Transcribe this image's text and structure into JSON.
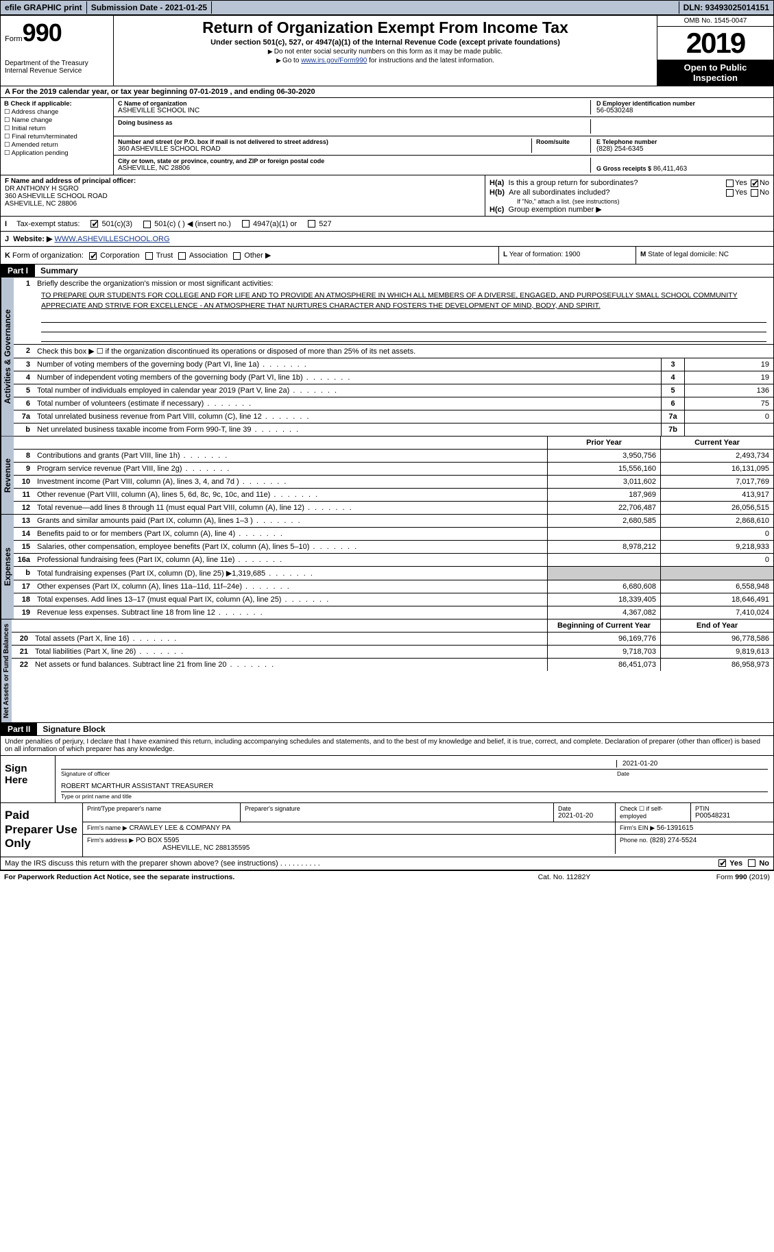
{
  "topbar": {
    "efile": "efile GRAPHIC print",
    "submission": "Submission Date - 2021-01-25",
    "dln": "DLN: 93493025014151"
  },
  "header": {
    "form_word": "Form",
    "form_num": "990",
    "dept1": "Department of the Treasury",
    "dept2": "Internal Revenue Service",
    "title": "Return of Organization Exempt From Income Tax",
    "subtitle": "Under section 501(c), 527, or 4947(a)(1) of the Internal Revenue Code (except private foundations)",
    "note1": "Do not enter social security numbers on this form as it may be made public.",
    "note2_pre": "Go to ",
    "note2_link": "www.irs.gov/Form990",
    "note2_post": " for instructions and the latest information.",
    "omb": "OMB No. 1545-0047",
    "year": "2019",
    "open1": "Open to Public",
    "open2": "Inspection"
  },
  "period": "For the 2019 calendar year, or tax year beginning 07-01-2019    , and ending 06-30-2020",
  "blockB": {
    "label": "B Check if applicable:",
    "opts": [
      "Address change",
      "Name change",
      "Initial return",
      "Final return/terminated",
      "Amended return",
      "Application pending"
    ]
  },
  "blockC": {
    "name_lab": "C Name of organization",
    "name": "ASHEVILLE SCHOOL INC",
    "dba_lab": "Doing business as",
    "street_lab": "Number and street (or P.O. box if mail is not delivered to street address)",
    "room_lab": "Room/suite",
    "street": "360 ASHEVILLE SCHOOL ROAD",
    "city_lab": "City or town, state or province, country, and ZIP or foreign postal code",
    "city": "ASHEVILLE, NC  28806"
  },
  "blockD": {
    "ein_lab": "D Employer identification number",
    "ein": "56-0530248",
    "tel_lab": "E Telephone number",
    "tel": "(828) 254-6345",
    "gross_lab": "G Gross receipts $",
    "gross": "86,411,463"
  },
  "blockF": {
    "lab": "F Name and address of principal officer:",
    "l1": "DR ANTHONY H SGRO",
    "l2": "360 ASHEVILLE SCHOOL ROAD",
    "l3": "ASHEVILLE, NC  28806"
  },
  "blockH": {
    "ha": "Is this a group return for subordinates?",
    "hb": "Are all subordinates included?",
    "hnote": "If \"No,\" attach a list. (see instructions)",
    "hc": "Group exemption number ▶",
    "ha_lab": "H(a)",
    "hb_lab": "H(b)",
    "hc_lab": "H(c)",
    "yes": "Yes",
    "no": "No"
  },
  "rowI": {
    "lab": "I",
    "txt": "Tax-exempt status:",
    "o1": "501(c)(3)",
    "o2": "501(c) (  ) ◀ (insert no.)",
    "o3": "4947(a)(1) or",
    "o4": "527"
  },
  "rowJ": {
    "lab": "J",
    "txt": "Website: ▶",
    "url": "WWW.ASHEVILLESCHOOL.ORG"
  },
  "rowK": {
    "lab": "K",
    "txt": "Form of organization:",
    "o1": "Corporation",
    "o2": "Trust",
    "o3": "Association",
    "o4": "Other ▶"
  },
  "rowL": {
    "lab": "L",
    "txt": "Year of formation: 1900"
  },
  "rowM": {
    "lab": "M",
    "txt": "State of legal domicile: NC"
  },
  "part1": {
    "hdr": "Part I",
    "title": "Summary",
    "line1_lab": "1",
    "line1_txt": "Briefly describe the organization's mission or most significant activities:",
    "mission": "TO PREPARE OUR STUDENTS FOR COLLEGE AND FOR LIFE AND TO PROVIDE AN ATMOSPHERE IN WHICH ALL MEMBERS OF A DIVERSE, ENGAGED, AND PURPOSEFULLY SMALL SCHOOL COMMUNITY APPRECIATE AND STRIVE FOR EXCELLENCE - AN ATMOSPHERE THAT NURTURES CHARACTER AND FOSTERS THE DEVELOPMENT OF MIND, BODY, AND SPIRIT.",
    "line2": "Check this box ▶ ☐  if the organization discontinued its operations or disposed of more than 25% of its net assets.",
    "tabs": {
      "ag": "Activities & Governance",
      "rev": "Revenue",
      "exp": "Expenses",
      "na": "Net Assets or Fund Balances"
    },
    "govRows": [
      {
        "n": "3",
        "d": "Number of voting members of the governing body (Part VI, line 1a)",
        "b": "3",
        "v": "19"
      },
      {
        "n": "4",
        "d": "Number of independent voting members of the governing body (Part VI, line 1b)",
        "b": "4",
        "v": "19"
      },
      {
        "n": "5",
        "d": "Total number of individuals employed in calendar year 2019 (Part V, line 2a)",
        "b": "5",
        "v": "136"
      },
      {
        "n": "6",
        "d": "Total number of volunteers (estimate if necessary)",
        "b": "6",
        "v": "75"
      },
      {
        "n": "7a",
        "d": "Total unrelated business revenue from Part VIII, column (C), line 12",
        "b": "7a",
        "v": "0"
      },
      {
        "n": "b",
        "d": "Net unrelated business taxable income from Form 990-T, line 39",
        "b": "7b",
        "v": ""
      }
    ],
    "colHdr1": "Prior Year",
    "colHdr2": "Current Year",
    "revRows": [
      {
        "n": "8",
        "d": "Contributions and grants (Part VIII, line 1h)",
        "p": "3,950,756",
        "c": "2,493,734"
      },
      {
        "n": "9",
        "d": "Program service revenue (Part VIII, line 2g)",
        "p": "15,556,160",
        "c": "16,131,095"
      },
      {
        "n": "10",
        "d": "Investment income (Part VIII, column (A), lines 3, 4, and 7d )",
        "p": "3,011,602",
        "c": "7,017,769"
      },
      {
        "n": "11",
        "d": "Other revenue (Part VIII, column (A), lines 5, 6d, 8c, 9c, 10c, and 11e)",
        "p": "187,969",
        "c": "413,917"
      },
      {
        "n": "12",
        "d": "Total revenue—add lines 8 through 11 (must equal Part VIII, column (A), line 12)",
        "p": "22,706,487",
        "c": "26,056,515"
      }
    ],
    "expRows": [
      {
        "n": "13",
        "d": "Grants and similar amounts paid (Part IX, column (A), lines 1–3 )",
        "p": "2,680,585",
        "c": "2,868,610"
      },
      {
        "n": "14",
        "d": "Benefits paid to or for members (Part IX, column (A), line 4)",
        "p": "",
        "c": "0"
      },
      {
        "n": "15",
        "d": "Salaries, other compensation, employee benefits (Part IX, column (A), lines 5–10)",
        "p": "8,978,212",
        "c": "9,218,933"
      },
      {
        "n": "16a",
        "d": "Professional fundraising fees (Part IX, column (A), line 11e)",
        "p": "",
        "c": "0"
      },
      {
        "n": "b",
        "d": "Total fundraising expenses (Part IX, column (D), line 25) ▶1,319,685",
        "p": "SHADE",
        "c": "SHADE"
      },
      {
        "n": "17",
        "d": "Other expenses (Part IX, column (A), lines 11a–11d, 11f–24e)",
        "p": "6,680,608",
        "c": "6,558,948"
      },
      {
        "n": "18",
        "d": "Total expenses. Add lines 13–17 (must equal Part IX, column (A), line 25)",
        "p": "18,339,405",
        "c": "18,646,491"
      },
      {
        "n": "19",
        "d": "Revenue less expenses. Subtract line 18 from line 12",
        "p": "4,367,082",
        "c": "7,410,024"
      }
    ],
    "naHdr1": "Beginning of Current Year",
    "naHdr2": "End of Year",
    "naRows": [
      {
        "n": "20",
        "d": "Total assets (Part X, line 16)",
        "p": "96,169,776",
        "c": "96,778,586"
      },
      {
        "n": "21",
        "d": "Total liabilities (Part X, line 26)",
        "p": "9,718,703",
        "c": "9,819,613"
      },
      {
        "n": "22",
        "d": "Net assets or fund balances. Subtract line 21 from line 20",
        "p": "86,451,073",
        "c": "86,958,973"
      }
    ]
  },
  "part2": {
    "hdr": "Part II",
    "title": "Signature Block",
    "decl": "Under penalties of perjury, I declare that I have examined this return, including accompanying schedules and statements, and to the best of my knowledge and belief, it is true, correct, and complete. Declaration of preparer (other than officer) is based on all information of which preparer has any knowledge.",
    "sign_here": "Sign Here",
    "sig_date": "2021-01-20",
    "sig_lab1": "Signature of officer",
    "sig_lab2": "Date",
    "officer": "ROBERT MCARTHUR  ASSISTANT TREASURER",
    "officer_lab": "Type or print name and title",
    "paid": "Paid Preparer Use Only",
    "prep_name_lab": "Print/Type preparer's name",
    "prep_sig_lab": "Preparer's signature",
    "prep_date_lab": "Date",
    "prep_date": "2021-01-20",
    "prep_check": "Check ☐ if self-employed",
    "ptin_lab": "PTIN",
    "ptin": "P00548231",
    "firm_name_lab": "Firm's name    ▶",
    "firm_name": "CRAWLEY LEE & COMPANY PA",
    "firm_ein_lab": "Firm's EIN ▶",
    "firm_ein": "56-1391615",
    "firm_addr_lab": "Firm's address ▶",
    "firm_addr1": "PO BOX 5595",
    "firm_addr2": "ASHEVILLE, NC  288135595",
    "firm_phone_lab": "Phone no.",
    "firm_phone": "(828) 274-5524"
  },
  "footer": {
    "discuss": "May the IRS discuss this return with the preparer shown above? (see instructions)",
    "yes": "Yes",
    "no": "No",
    "pra": "For Paperwork Reduction Act Notice, see the separate instructions.",
    "cat": "Cat. No. 11282Y",
    "form": "Form 990 (2019)"
  }
}
